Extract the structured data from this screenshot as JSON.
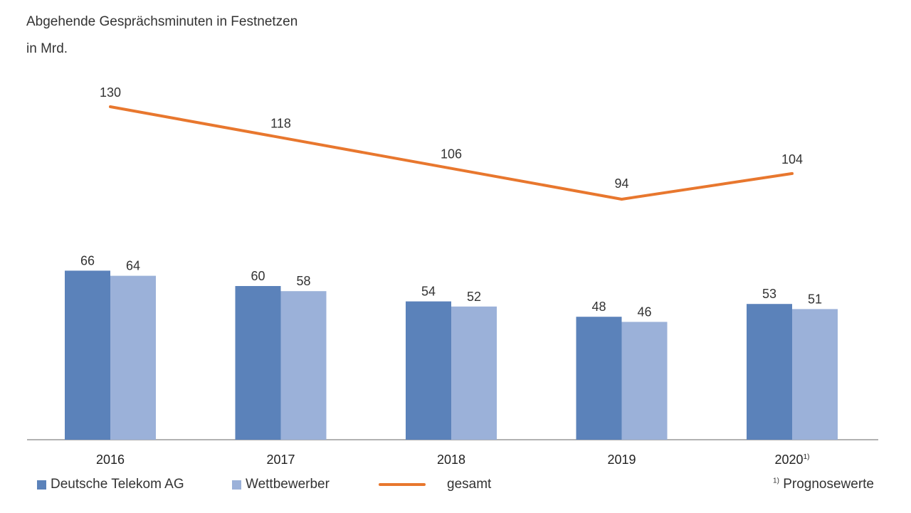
{
  "title": "Abgehende Gesprächsminuten in Festnetzen",
  "unit": "in Mrd.",
  "footnote_mark": "1)",
  "footnote_text": "Prognosewerte",
  "colors": {
    "telekom": "#5b82ba",
    "wettbewerber": "#9bb1d9",
    "gesamt": "#e8772e",
    "axis": "#999999"
  },
  "chart_data": {
    "type": "bar",
    "categories": [
      "2016",
      "2017",
      "2018",
      "2019",
      "2020"
    ],
    "category_footnotes": [
      "",
      "",
      "",
      "",
      "1)"
    ],
    "series": [
      {
        "name": "Deutsche Telekom AG",
        "type": "bar",
        "values": [
          66,
          60,
          54,
          48,
          53
        ]
      },
      {
        "name": "Wettbewerber",
        "type": "bar",
        "values": [
          64,
          58,
          52,
          46,
          51
        ]
      },
      {
        "name": "gesamt",
        "type": "line",
        "values": [
          130,
          118,
          106,
          94,
          104
        ]
      }
    ],
    "grid": false,
    "legend_position": "bottom"
  }
}
